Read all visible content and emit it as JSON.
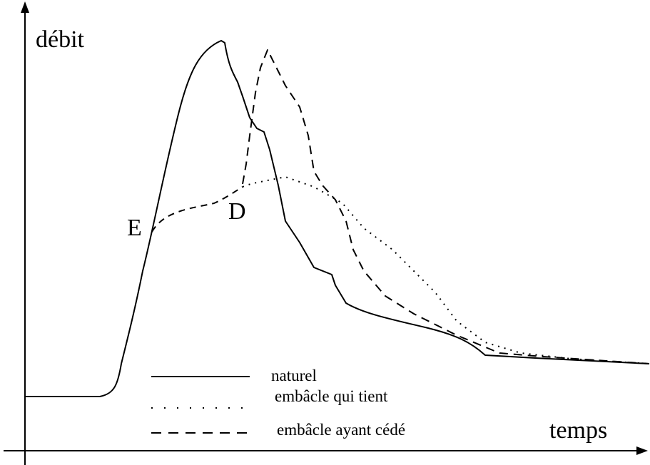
{
  "axes": {
    "y_label": "débit",
    "x_label": "temps"
  },
  "points": {
    "E": "E",
    "D": "D"
  },
  "legend": [
    "naturel",
    "embâcle qui tient",
    "embâcle ayant cédé"
  ]
}
